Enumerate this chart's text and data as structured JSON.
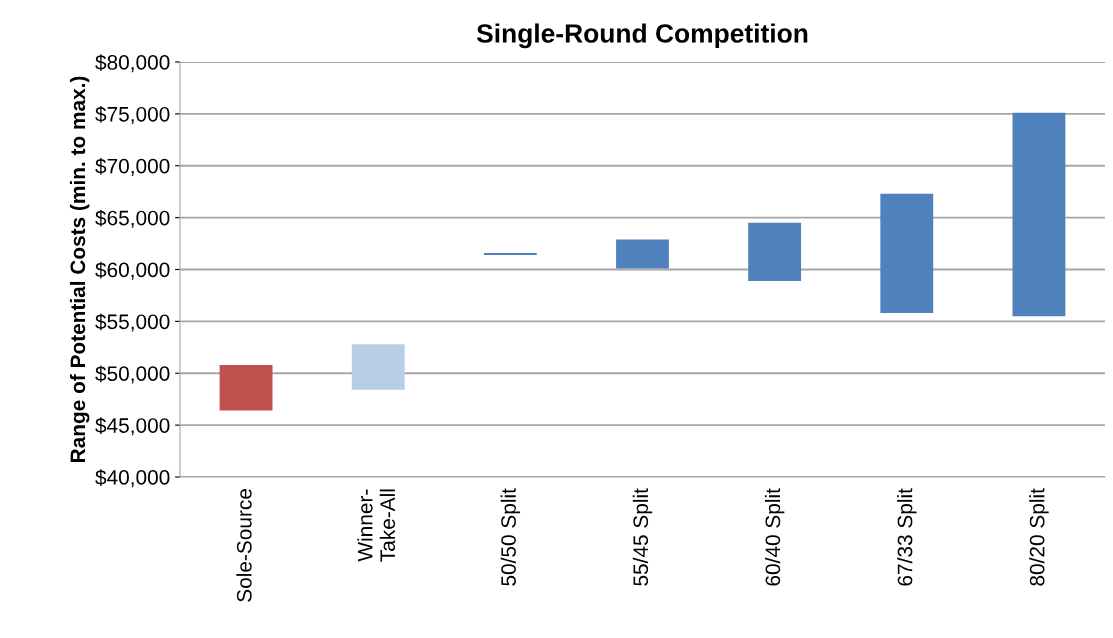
{
  "chart_data": {
    "type": "bar",
    "title": "Single-Round Competition",
    "ylabel": "Range of Potential Costs (min. to max.)",
    "categories": [
      "Sole-Source",
      "Winner-\nTake-All",
      "50/50 Split",
      "55/45 Split",
      "60/40 Split",
      "67/33 Split",
      "80/20 Split"
    ],
    "base": [
      46400,
      48400,
      61400,
      60100,
      58900,
      55800,
      55500
    ],
    "values": [
      4400,
      4400,
      200,
      2800,
      5600,
      11500,
      19600
    ],
    "colors": [
      "#c0504d",
      "#b9cde5",
      "#4f81bd",
      "#4f81bd",
      "#4f81bd",
      "#4f81bd",
      "#4f81bd"
    ],
    "ylim": [
      40000,
      80000
    ],
    "yticks": [
      {
        "value": 40000,
        "label": "$40,000"
      },
      {
        "value": 45000,
        "label": "$45,000"
      },
      {
        "value": 50000,
        "label": "$50,000"
      },
      {
        "value": 55000,
        "label": "$55,000"
      },
      {
        "value": 60000,
        "label": "$60,000"
      },
      {
        "value": 65000,
        "label": "$65,000"
      },
      {
        "value": 70000,
        "label": "$70,000"
      },
      {
        "value": 75000,
        "label": "$75,000"
      },
      {
        "value": 80000,
        "label": "$80,000"
      }
    ],
    "grid": "y",
    "legend": false
  }
}
